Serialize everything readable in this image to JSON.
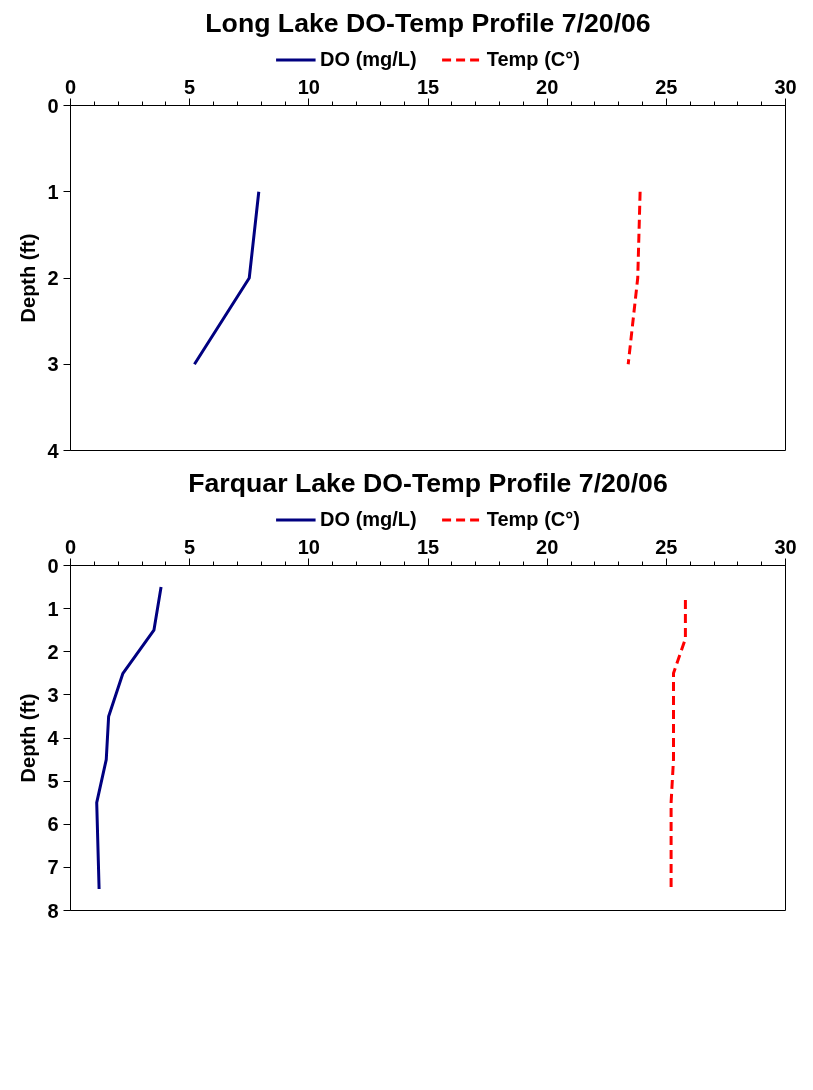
{
  "chart_data": [
    {
      "type": "line",
      "title": "Long Lake DO-Temp Profile 7/20/06",
      "ylabel": "Depth (ft)",
      "xlim": [
        0,
        30
      ],
      "xticks": [
        0,
        5,
        10,
        15,
        20,
        25,
        30
      ],
      "ylim": [
        4,
        0
      ],
      "yticks": [
        0,
        1,
        2,
        3,
        4
      ],
      "legend": "top",
      "grid": false,
      "series": [
        {
          "name": "DO (mg/L)",
          "color": "#000080",
          "line_style": "solid",
          "x": [
            7.9,
            7.5,
            5.2
          ],
          "values": [
            1,
            2,
            3
          ]
        },
        {
          "name": "Temp (C°)",
          "color": "#ff0000",
          "line_style": "dashed",
          "x": [
            23.9,
            23.8,
            23.4
          ],
          "values": [
            1,
            2,
            3
          ]
        }
      ]
    },
    {
      "type": "line",
      "title": "Farquar Lake DO-Temp Profile 7/20/06",
      "ylabel": "Depth (ft)",
      "xlim": [
        0,
        30
      ],
      "xticks": [
        0,
        5,
        10,
        15,
        20,
        25,
        30
      ],
      "ylim": [
        8,
        0
      ],
      "yticks": [
        0,
        1,
        2,
        3,
        4,
        5,
        6,
        7,
        8
      ],
      "legend": "top",
      "grid": false,
      "series": [
        {
          "name": "DO (mg/L)",
          "color": "#000080",
          "line_style": "solid",
          "x": [
            3.8,
            3.5,
            2.2,
            1.6,
            1.5,
            1.1,
            1.2
          ],
          "values": [
            0.5,
            1.5,
            2.5,
            3.5,
            4.5,
            5.5,
            7.5
          ]
        },
        {
          "name": "Temp (C°)",
          "color": "#ff0000",
          "line_style": "dashed",
          "x": [
            25.8,
            25.8,
            25.3,
            25.3,
            25.3,
            25.2,
            25.2
          ],
          "values": [
            0.8,
            1.7,
            2.5,
            3.5,
            4.5,
            5.5,
            7.5
          ]
        }
      ]
    }
  ]
}
